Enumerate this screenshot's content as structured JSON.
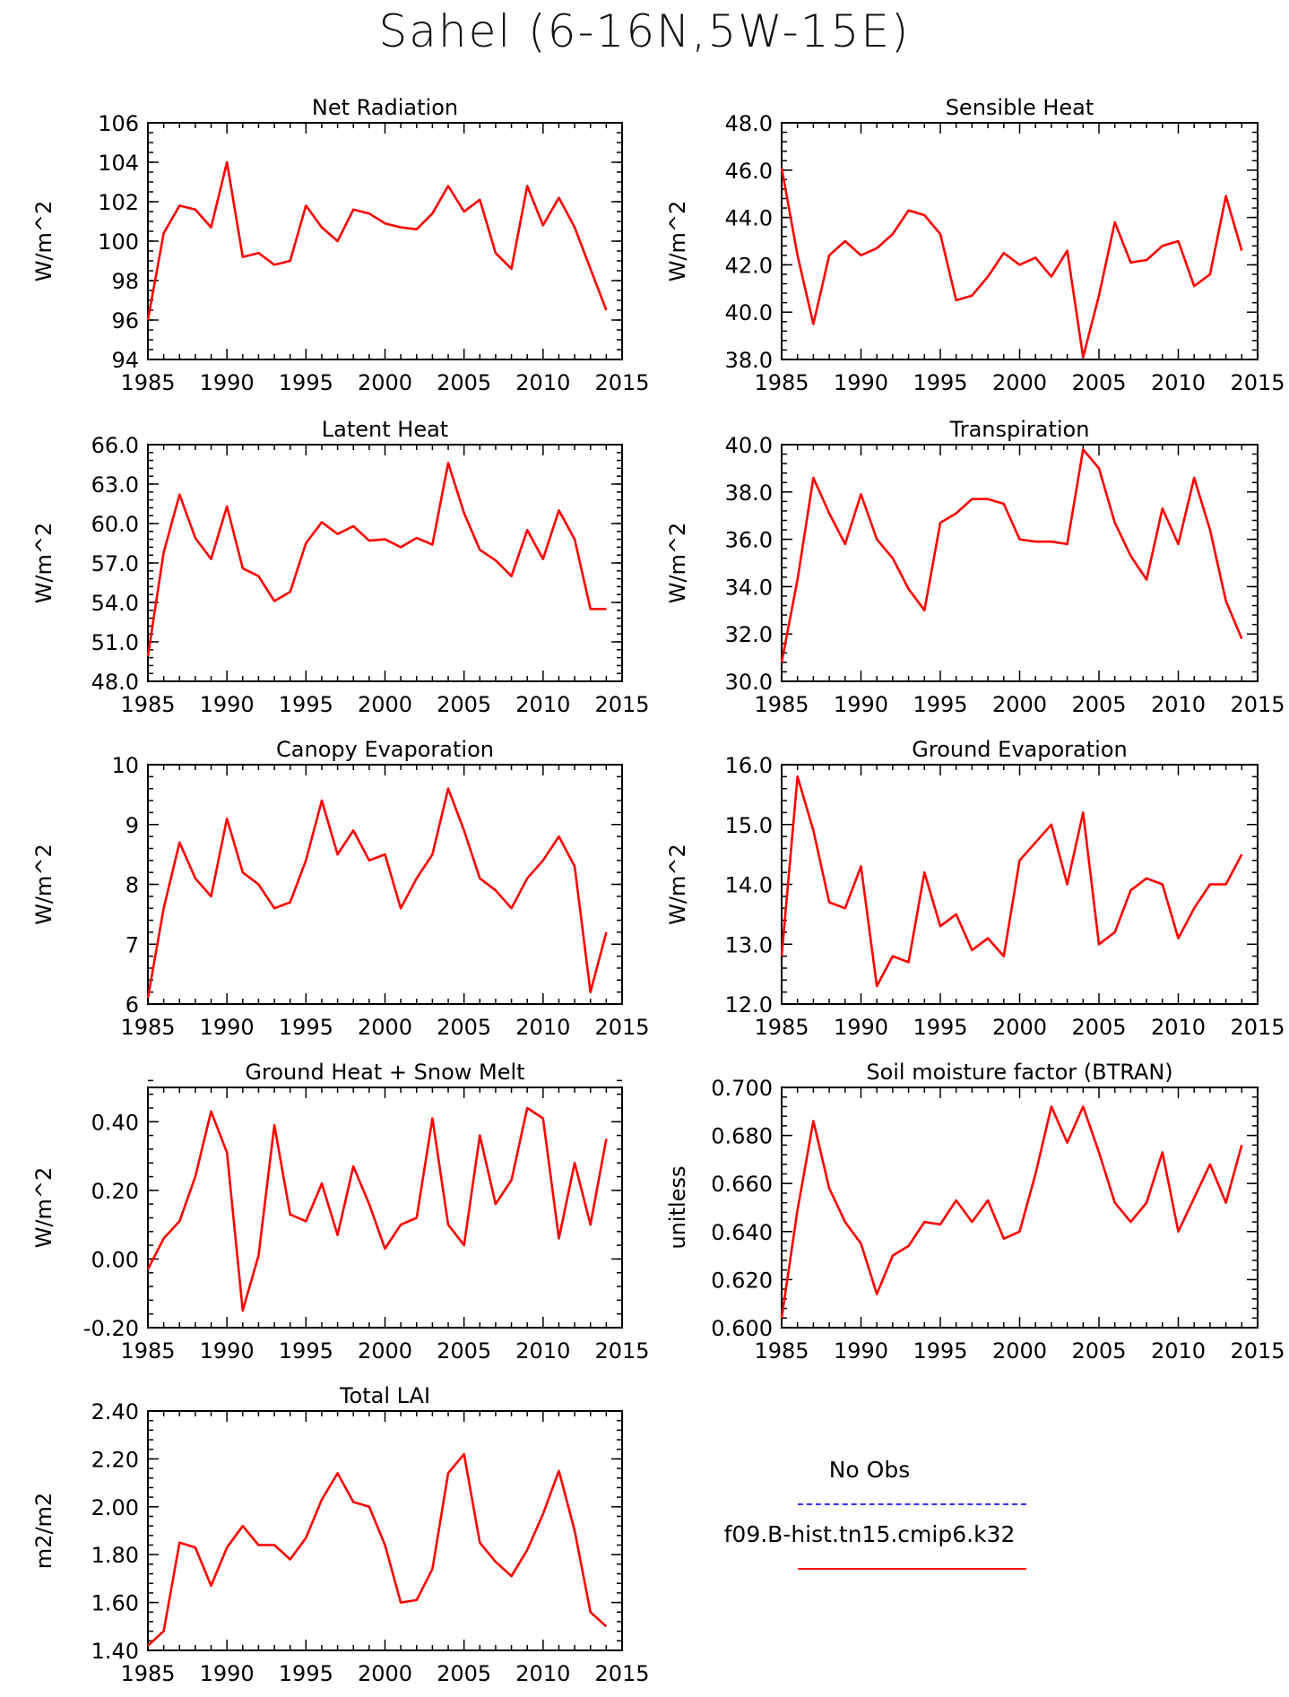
{
  "title": "Sahel (6-16N,5W-15E)",
  "legend": {
    "items": [
      {
        "label": "No Obs",
        "color": "#3333ff",
        "dash": true
      },
      {
        "label": "f09.B-hist.tn15.cmip6.k32",
        "color": "#ff0000",
        "dash": false
      }
    ]
  },
  "chart_data": [
    {
      "type": "line",
      "title": "Net Radiation",
      "ylabel": "W/m^2",
      "xlim": [
        1985,
        2015
      ],
      "ylim": [
        94,
        106
      ],
      "xticks": [
        1985,
        1990,
        1995,
        2000,
        2005,
        2010,
        2015
      ],
      "yticks": [
        "94",
        "96",
        "98",
        "100",
        "102",
        "104",
        "106"
      ],
      "yminor": 0.5,
      "color": "#ff0000",
      "x": [
        1985,
        1986,
        1987,
        1988,
        1989,
        1990,
        1991,
        1992,
        1993,
        1994,
        1995,
        1996,
        1997,
        1998,
        1999,
        2000,
        2001,
        2002,
        2003,
        2004,
        2005,
        2006,
        2007,
        2008,
        2009,
        2010,
        2011,
        2012,
        2013,
        2014
      ],
      "y": [
        96.0,
        100.4,
        101.8,
        101.6,
        100.7,
        104.0,
        99.2,
        99.4,
        98.8,
        99.0,
        101.8,
        100.7,
        100.0,
        101.6,
        101.4,
        100.9,
        100.7,
        100.6,
        101.4,
        102.8,
        101.5,
        102.1,
        99.4,
        98.6,
        102.8,
        100.8,
        102.2,
        100.7,
        98.6,
        96.5
      ]
    },
    {
      "type": "line",
      "title": "Sensible Heat",
      "ylabel": "W/m^2",
      "xlim": [
        1985,
        2015
      ],
      "ylim": [
        38,
        48
      ],
      "xticks": [
        1985,
        1990,
        1995,
        2000,
        2005,
        2010,
        2015
      ],
      "yticks": [
        "38.0",
        "40.0",
        "42.0",
        "44.0",
        "46.0",
        "48.0"
      ],
      "yminor": 0.4,
      "color": "#ff0000",
      "x": [
        1985,
        1986,
        1987,
        1988,
        1989,
        1990,
        1991,
        1992,
        1993,
        1994,
        1995,
        1996,
        1997,
        1998,
        1999,
        2000,
        2001,
        2002,
        2003,
        2004,
        2005,
        2006,
        2007,
        2008,
        2009,
        2010,
        2011,
        2012,
        2013,
        2014
      ],
      "y": [
        46.1,
        42.4,
        39.5,
        42.4,
        43.0,
        42.4,
        42.7,
        43.3,
        44.3,
        44.1,
        43.3,
        40.5,
        40.7,
        41.5,
        42.5,
        42.0,
        42.3,
        41.5,
        42.6,
        38.1,
        40.7,
        43.8,
        42.1,
        42.2,
        42.8,
        43.0,
        41.1,
        41.6,
        44.9,
        42.6
      ]
    },
    {
      "type": "line",
      "title": "Latent Heat",
      "ylabel": "W/m^2",
      "xlim": [
        1985,
        2015
      ],
      "ylim": [
        48,
        66
      ],
      "xticks": [
        1985,
        1990,
        1995,
        2000,
        2005,
        2010,
        2015
      ],
      "yticks": [
        "48.0",
        "51.0",
        "54.0",
        "57.0",
        "60.0",
        "63.0",
        "66.0"
      ],
      "yminor": 0.6,
      "color": "#ff0000",
      "x": [
        1985,
        1986,
        1987,
        1988,
        1989,
        1990,
        1991,
        1992,
        1993,
        1994,
        1995,
        1996,
        1997,
        1998,
        1999,
        2000,
        2001,
        2002,
        2003,
        2004,
        2005,
        2006,
        2007,
        2008,
        2009,
        2010,
        2011,
        2012,
        2013,
        2014
      ],
      "y": [
        49.9,
        57.8,
        62.2,
        58.9,
        57.3,
        61.3,
        56.6,
        56.0,
        54.1,
        54.8,
        58.5,
        60.1,
        59.2,
        59.8,
        58.7,
        58.8,
        58.2,
        58.9,
        58.4,
        64.6,
        60.8,
        58.0,
        57.2,
        56.0,
        59.5,
        57.3,
        61.0,
        58.8,
        53.5,
        53.5
      ]
    },
    {
      "type": "line",
      "title": "Transpiration",
      "ylabel": "W/m^2",
      "xlim": [
        1985,
        2015
      ],
      "ylim": [
        30,
        40
      ],
      "xticks": [
        1985,
        1990,
        1995,
        2000,
        2005,
        2010,
        2015
      ],
      "yticks": [
        "30.0",
        "32.0",
        "34.0",
        "36.0",
        "38.0",
        "40.0"
      ],
      "yminor": 0.4,
      "color": "#ff0000",
      "x": [
        1985,
        1986,
        1987,
        1988,
        1989,
        1990,
        1991,
        1992,
        1993,
        1994,
        1995,
        1996,
        1997,
        1998,
        1999,
        2000,
        2001,
        2002,
        2003,
        2004,
        2005,
        2006,
        2007,
        2008,
        2009,
        2010,
        2011,
        2012,
        2013,
        2014
      ],
      "y": [
        30.8,
        34.3,
        38.6,
        37.1,
        35.8,
        37.9,
        36.0,
        35.2,
        33.9,
        33.0,
        36.7,
        37.1,
        37.7,
        37.7,
        37.5,
        36.0,
        35.9,
        35.9,
        35.8,
        39.8,
        39.0,
        36.7,
        35.3,
        34.3,
        37.3,
        35.8,
        38.6,
        36.4,
        33.4,
        31.8
      ]
    },
    {
      "type": "line",
      "title": "Canopy Evaporation",
      "ylabel": "W/m^2",
      "xlim": [
        1985,
        2015
      ],
      "ylim": [
        6,
        10
      ],
      "xticks": [
        1985,
        1990,
        1995,
        2000,
        2005,
        2010,
        2015
      ],
      "yticks": [
        "6",
        "7",
        "8",
        "9",
        "10"
      ],
      "yminor": 0.2,
      "color": "#ff0000",
      "x": [
        1985,
        1986,
        1987,
        1988,
        1989,
        1990,
        1991,
        1992,
        1993,
        1994,
        1995,
        1996,
        1997,
        1998,
        1999,
        2000,
        2001,
        2002,
        2003,
        2004,
        2005,
        2006,
        2007,
        2008,
        2009,
        2010,
        2011,
        2012,
        2013,
        2014
      ],
      "y": [
        6.1,
        7.6,
        8.7,
        8.1,
        7.8,
        9.1,
        8.2,
        8.0,
        7.6,
        7.7,
        8.4,
        9.4,
        8.5,
        8.9,
        8.4,
        8.5,
        7.6,
        8.1,
        8.5,
        9.6,
        8.9,
        8.1,
        7.9,
        7.6,
        8.1,
        8.4,
        8.8,
        8.3,
        6.2,
        7.2
      ]
    },
    {
      "type": "line",
      "title": "Ground Evaporation",
      "ylabel": "W/m^2",
      "xlim": [
        1985,
        2015
      ],
      "ylim": [
        12,
        16
      ],
      "xticks": [
        1985,
        1990,
        1995,
        2000,
        2005,
        2010,
        2015
      ],
      "yticks": [
        "12.0",
        "13.0",
        "14.0",
        "15.0",
        "16.0"
      ],
      "yminor": 0.2,
      "color": "#ff0000",
      "x": [
        1985,
        1986,
        1987,
        1988,
        1989,
        1990,
        1991,
        1992,
        1993,
        1994,
        1995,
        1996,
        1997,
        1998,
        1999,
        2000,
        2001,
        2002,
        2003,
        2004,
        2005,
        2006,
        2007,
        2008,
        2009,
        2010,
        2011,
        2012,
        2013,
        2014
      ],
      "y": [
        12.8,
        15.8,
        14.9,
        13.7,
        13.6,
        14.3,
        12.3,
        12.8,
        12.7,
        14.2,
        13.3,
        13.5,
        12.9,
        13.1,
        12.8,
        14.4,
        14.7,
        15.0,
        14.0,
        15.2,
        13.0,
        13.2,
        13.9,
        14.1,
        14.0,
        13.1,
        13.6,
        14.0,
        14.0,
        14.5
      ]
    },
    {
      "type": "line",
      "title": "Ground Heat + Snow Melt",
      "ylabel": "W/m^2",
      "xlim": [
        1985,
        2015
      ],
      "ylim": [
        -0.2,
        0.5
      ],
      "xticks": [
        1985,
        1990,
        1995,
        2000,
        2005,
        2010,
        2015
      ],
      "yticks": [
        "-0.20",
        "0.00",
        "0.20",
        "0.40"
      ],
      "ytickvals": [
        -0.2,
        0.0,
        0.2,
        0.4
      ],
      "yminor": 0.04,
      "color": "#ff0000",
      "x": [
        1985,
        1986,
        1987,
        1988,
        1989,
        1990,
        1991,
        1992,
        1993,
        1994,
        1995,
        1996,
        1997,
        1998,
        1999,
        2000,
        2001,
        2002,
        2003,
        2004,
        2005,
        2006,
        2007,
        2008,
        2009,
        2010,
        2011,
        2012,
        2013,
        2014
      ],
      "y": [
        -0.03,
        0.06,
        0.11,
        0.24,
        0.43,
        0.31,
        -0.15,
        0.01,
        0.39,
        0.13,
        0.11,
        0.22,
        0.07,
        0.27,
        0.16,
        0.03,
        0.1,
        0.12,
        0.41,
        0.1,
        0.04,
        0.36,
        0.16,
        0.23,
        0.44,
        0.41,
        0.06,
        0.28,
        0.1,
        0.35
      ]
    },
    {
      "type": "line",
      "title": "Soil moisture factor (BTRAN)",
      "ylabel": "unitless",
      "xlim": [
        1985,
        2015
      ],
      "ylim": [
        0.6,
        0.7
      ],
      "xticks": [
        1985,
        1990,
        1995,
        2000,
        2005,
        2010,
        2015
      ],
      "yticks": [
        "0.600",
        "0.620",
        "0.640",
        "0.660",
        "0.680",
        "0.700"
      ],
      "yminor": 0.004,
      "color": "#ff0000",
      "x": [
        1985,
        1986,
        1987,
        1988,
        1989,
        1990,
        1991,
        1992,
        1993,
        1994,
        1995,
        1996,
        1997,
        1998,
        1999,
        2000,
        2001,
        2002,
        2003,
        2004,
        2005,
        2006,
        2007,
        2008,
        2009,
        2010,
        2011,
        2012,
        2013,
        2014
      ],
      "y": [
        0.604,
        0.649,
        0.686,
        0.658,
        0.644,
        0.635,
        0.614,
        0.63,
        0.634,
        0.644,
        0.643,
        0.653,
        0.644,
        0.653,
        0.637,
        0.64,
        0.664,
        0.692,
        0.677,
        0.692,
        0.673,
        0.652,
        0.644,
        0.652,
        0.673,
        0.64,
        0.654,
        0.668,
        0.652,
        0.676
      ]
    },
    {
      "type": "line",
      "title": "Total LAI",
      "ylabel": "m2/m2",
      "xlim": [
        1985,
        2015
      ],
      "ylim": [
        1.4,
        2.4
      ],
      "xticks": [
        1985,
        1990,
        1995,
        2000,
        2005,
        2010,
        2015
      ],
      "yticks": [
        "1.40",
        "1.60",
        "1.80",
        "2.00",
        "2.20",
        "2.40"
      ],
      "yminor": 0.04,
      "color": "#ff0000",
      "x": [
        1985,
        1986,
        1987,
        1988,
        1989,
        1990,
        1991,
        1992,
        1993,
        1994,
        1995,
        1996,
        1997,
        1998,
        1999,
        2000,
        2001,
        2002,
        2003,
        2004,
        2005,
        2006,
        2007,
        2008,
        2009,
        2010,
        2011,
        2012,
        2013,
        2014
      ],
      "y": [
        1.42,
        1.48,
        1.85,
        1.83,
        1.67,
        1.83,
        1.92,
        1.84,
        1.84,
        1.78,
        1.87,
        2.03,
        2.14,
        2.02,
        2.0,
        1.84,
        1.6,
        1.61,
        1.74,
        2.14,
        2.22,
        1.85,
        1.77,
        1.71,
        1.82,
        1.97,
        2.15,
        1.9,
        1.56,
        1.5
      ]
    }
  ]
}
